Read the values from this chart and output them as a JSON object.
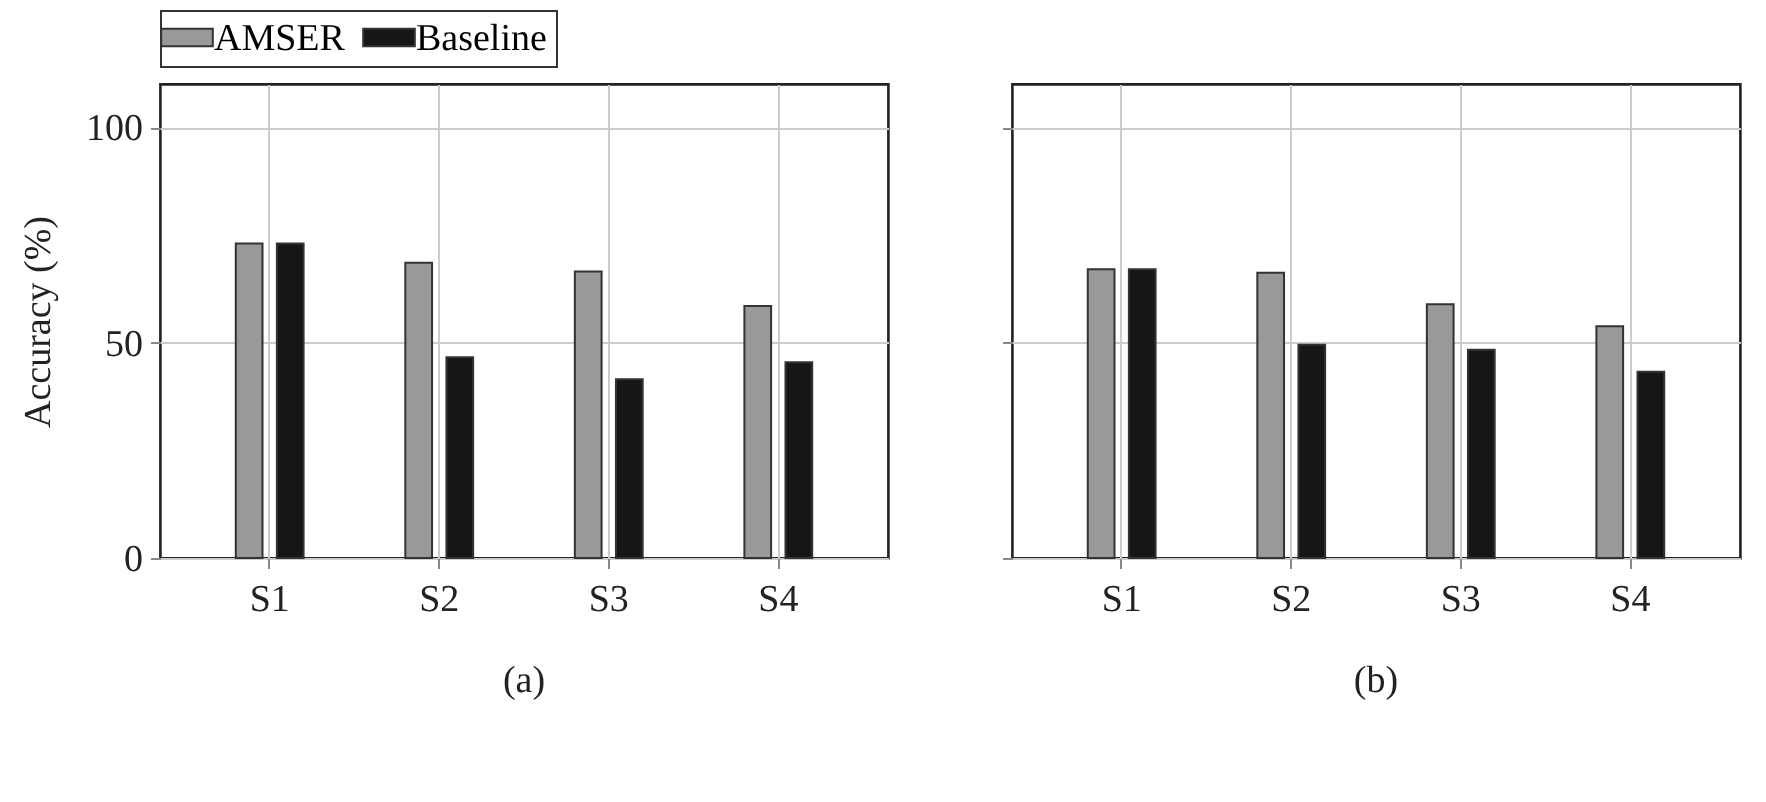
{
  "chart_data": [
    {
      "type": "bar",
      "title": "(a)",
      "ylabel": "Accuracy (%)",
      "categories": [
        "S1",
        "S2",
        "S3",
        "S4"
      ],
      "series": [
        {
          "name": "AMSER",
          "color": "#999999",
          "values": [
            73,
            68.5,
            66.5,
            58.5
          ]
        },
        {
          "name": "Baseline",
          "color": "#161616",
          "values": [
            73,
            46.6,
            41.5,
            45.4
          ]
        }
      ],
      "ylim": [
        0,
        110
      ],
      "yticks": [
        0,
        50,
        100
      ],
      "grid": true,
      "legend": "top"
    },
    {
      "type": "bar",
      "title": "(b)",
      "categories": [
        "S1",
        "S2",
        "S3",
        "S4"
      ],
      "series": [
        {
          "name": "AMSER",
          "color": "#999999",
          "values": [
            67,
            66.2,
            58.9,
            53.8
          ]
        },
        {
          "name": "Baseline",
          "color": "#161616",
          "values": [
            67,
            49.5,
            48.3,
            43.2
          ]
        }
      ],
      "ylim": [
        0,
        110
      ],
      "yticks": [
        0,
        50,
        100
      ],
      "grid": true,
      "legend": "top",
      "tick_labels": "x"
    }
  ]
}
